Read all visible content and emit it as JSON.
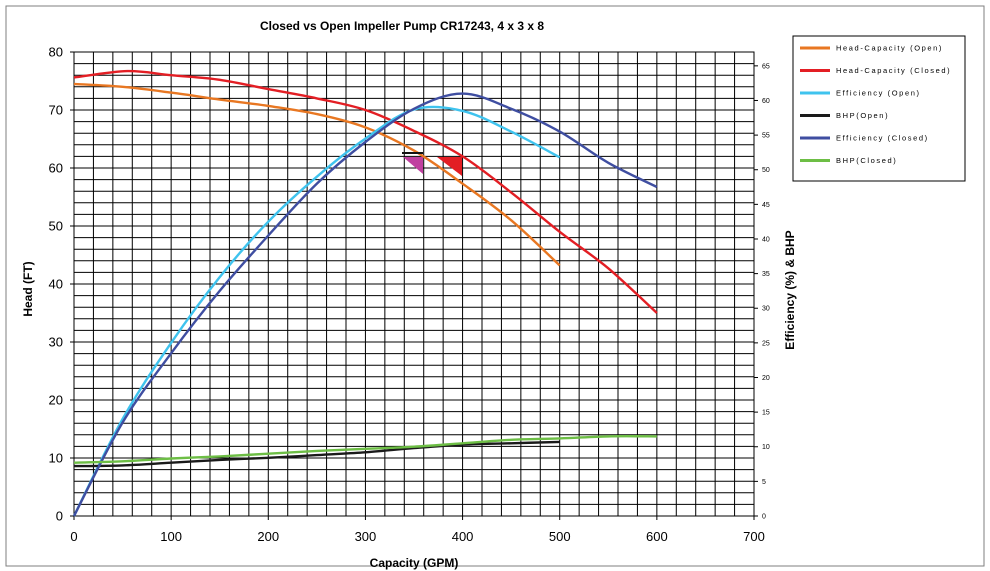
{
  "chart_data": {
    "type": "line",
    "title": "Closed vs Open Impeller Pump CR17243, 4 x 3 x 8",
    "xlabel": "Capacity (GPM)",
    "ylabel": "Head (FT)",
    "y2label": "Efficiency (%) & BHP",
    "xlim": [
      0,
      700
    ],
    "ylim": [
      0,
      80
    ],
    "y2lim": [
      0,
      67
    ],
    "x_ticks": [
      "0",
      "100",
      "200",
      "300",
      "400",
      "500",
      "600",
      "700"
    ],
    "y_ticks": [
      "0",
      "10",
      "20",
      "30",
      "40",
      "50",
      "60",
      "70",
      "80"
    ],
    "y2_ticks": [
      "0",
      "5",
      "10",
      "15",
      "20",
      "25",
      "30",
      "35",
      "40",
      "45",
      "50",
      "55",
      "60",
      "65"
    ],
    "grid": true,
    "legend_position": "top-right",
    "series": [
      {
        "name": "Head-Capacity (Open)",
        "color": "#E87722",
        "axis": "left",
        "x": [
          0,
          50,
          100,
          150,
          200,
          250,
          300,
          350,
          400,
          450,
          500
        ],
        "y": [
          74.5,
          74.0,
          73.0,
          71.8,
          70.7,
          69.3,
          67.0,
          63.0,
          57.3,
          51.0,
          43.2
        ]
      },
      {
        "name": "Head-Capacity (Closed)",
        "color": "#E31E24",
        "axis": "left",
        "x": [
          0,
          55,
          100,
          150,
          200,
          250,
          300,
          350,
          400,
          450,
          500,
          550,
          600
        ],
        "y": [
          75.6,
          76.7,
          76.0,
          75.2,
          73.6,
          72.0,
          70.0,
          66.4,
          62.0,
          55.8,
          49.0,
          42.7,
          35.0
        ]
      },
      {
        "name": "Efficiency (Open)",
        "color": "#3FC3EE",
        "axis": "right",
        "x": [
          0,
          50,
          100,
          150,
          200,
          250,
          300,
          350,
          400,
          450,
          500
        ],
        "y": [
          0,
          14.0,
          25.0,
          34.5,
          42.5,
          49.0,
          54.5,
          58.7,
          58.5,
          55.5,
          51.8
        ]
      },
      {
        "name": "BHP (Open)",
        "color": "#1A1A1A",
        "axis": "right",
        "x": [
          0,
          50,
          100,
          150,
          200,
          250,
          300,
          350,
          400,
          450,
          500
        ],
        "y": [
          7.2,
          7.3,
          7.7,
          8.1,
          8.4,
          8.8,
          9.2,
          9.8,
          10.3,
          10.5,
          10.7
        ]
      },
      {
        "name": "Efficiency (Closed)",
        "color": "#3F4EA1",
        "axis": "right",
        "x": [
          0,
          50,
          100,
          150,
          200,
          250,
          300,
          350,
          400,
          450,
          500,
          550,
          600
        ],
        "y": [
          0,
          13.5,
          23.5,
          32.5,
          40.5,
          48.0,
          54.0,
          58.8,
          61.0,
          58.8,
          55.5,
          51.0,
          47.5
        ]
      },
      {
        "name": "BHP (Closed)",
        "color": "#6DBE45",
        "axis": "right",
        "x": [
          0,
          50,
          100,
          150,
          200,
          250,
          300,
          350,
          400,
          450,
          500,
          550,
          600
        ],
        "y": [
          7.7,
          7.9,
          8.3,
          8.6,
          9.0,
          9.4,
          9.7,
          10.0,
          10.5,
          11.0,
          11.2,
          11.5,
          11.5
        ]
      }
    ]
  },
  "legend": {
    "items": [
      "Head-Capacity (Open)",
      "Head-Capacity (Closed)",
      "Efficiency (Open)",
      "BHP(Open)",
      "Efficiency (Closed)",
      "BHP(Closed)"
    ]
  }
}
